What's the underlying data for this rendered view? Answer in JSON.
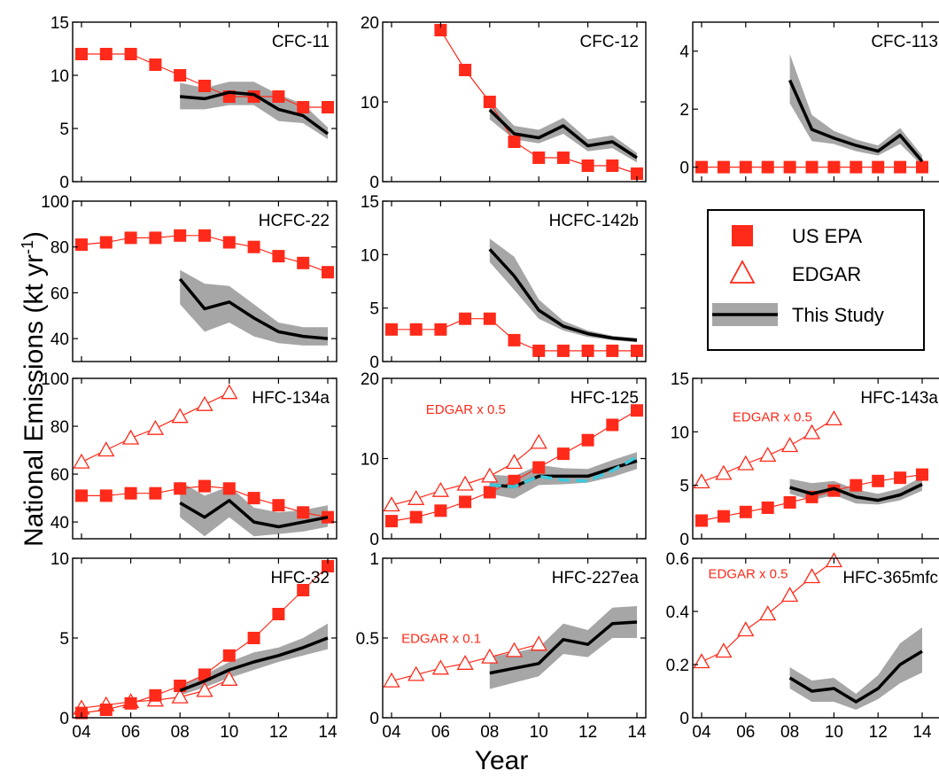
{
  "colors": {
    "epa": "#ff2a1a",
    "edgar": "#ff2a1a",
    "study": "#000000",
    "band": "#a6a6a6",
    "cyan": "#3ec8dc"
  },
  "labels": {
    "ylabel_main": "National Emissions (kt yr",
    "ylabel_sup": "-1",
    "ylabel_close": ")",
    "xlabel": "Year"
  },
  "legend": {
    "epa": "US EPA",
    "edgar": "EDGAR",
    "study": "This Study"
  },
  "chart_data": [
    {
      "type": "line",
      "title": "CFC-11",
      "x_ticks": [
        "04",
        "06",
        "08",
        "10",
        "12",
        "14"
      ],
      "xlim": [
        2004,
        2014
      ],
      "y_ticks": [
        "0",
        "5",
        "10",
        "15"
      ],
      "ylim": [
        0,
        15
      ],
      "series": [
        {
          "name": "US EPA",
          "x": [
            2004,
            2005,
            2006,
            2007,
            2008,
            2009,
            2010,
            2011,
            2012,
            2013,
            2014
          ],
          "y": [
            12,
            12,
            12,
            11,
            10,
            9,
            8,
            8,
            8,
            7,
            7
          ]
        },
        {
          "name": "This Study",
          "x": [
            2008,
            2009,
            2010,
            2011,
            2012,
            2013,
            2014
          ],
          "y": [
            8,
            7.8,
            8.4,
            8.2,
            6.8,
            6.2,
            4.5
          ],
          "lower": [
            6.8,
            6.8,
            7.2,
            7.2,
            5.7,
            5.5,
            4.0
          ],
          "upper": [
            9.3,
            8.8,
            9.4,
            9.4,
            8.2,
            7.3,
            5.1
          ]
        }
      ],
      "annotations": []
    },
    {
      "type": "line",
      "title": "CFC-12",
      "x_ticks": [
        "04",
        "06",
        "08",
        "10",
        "12",
        "14"
      ],
      "xlim": [
        2004,
        2014
      ],
      "y_ticks": [
        "0",
        "10",
        "20"
      ],
      "ylim": [
        0,
        20
      ],
      "series": [
        {
          "name": "US EPA",
          "x": [
            2006,
            2007,
            2008,
            2009,
            2010,
            2011,
            2012,
            2013,
            2014
          ],
          "y": [
            19,
            14,
            10,
            5,
            3,
            3,
            2,
            2,
            1
          ]
        },
        {
          "name": "This Study",
          "x": [
            2008,
            2009,
            2010,
            2011,
            2012,
            2013,
            2014
          ],
          "y": [
            9,
            6,
            5.5,
            7,
            4.5,
            5,
            3
          ],
          "lower": [
            7.8,
            5.3,
            4.8,
            6.0,
            3.8,
            4.2,
            2.4
          ],
          "upper": [
            10.2,
            7.0,
            6.5,
            8.0,
            5.3,
            5.8,
            3.6
          ]
        }
      ],
      "annotations": []
    },
    {
      "type": "line",
      "title": "CFC-113",
      "x_ticks": [
        "04",
        "06",
        "08",
        "10",
        "12",
        "14"
      ],
      "xlim": [
        2004,
        2014
      ],
      "y_ticks": [
        "0",
        "2",
        "4"
      ],
      "ylim": [
        -0.5,
        5
      ],
      "series": [
        {
          "name": "US EPA",
          "x": [
            2004,
            2005,
            2006,
            2007,
            2008,
            2009,
            2010,
            2011,
            2012,
            2013,
            2014
          ],
          "y": [
            0,
            0,
            0,
            0,
            0,
            0,
            0,
            0,
            0,
            0,
            0
          ]
        },
        {
          "name": "This Study",
          "x": [
            2008,
            2009,
            2010,
            2011,
            2012,
            2013,
            2014
          ],
          "y": [
            3,
            1.3,
            1.0,
            0.75,
            0.55,
            1.1,
            0.2
          ],
          "lower": [
            2.2,
            0.9,
            0.8,
            0.55,
            0.4,
            0.8,
            0.05
          ],
          "upper": [
            3.9,
            1.8,
            1.25,
            0.95,
            0.75,
            1.35,
            0.4
          ]
        }
      ],
      "annotations": []
    },
    {
      "type": "line",
      "title": "HCFC-22",
      "x_ticks": [
        "04",
        "06",
        "08",
        "10",
        "12",
        "14"
      ],
      "xlim": [
        2004,
        2014
      ],
      "y_ticks": [
        "40",
        "60",
        "80",
        "100"
      ],
      "ylim": [
        30,
        100
      ],
      "series": [
        {
          "name": "US EPA",
          "x": [
            2004,
            2005,
            2006,
            2007,
            2008,
            2009,
            2010,
            2011,
            2012,
            2013,
            2014
          ],
          "y": [
            81,
            82,
            84,
            84,
            85,
            85,
            82,
            80,
            76,
            73,
            69
          ]
        },
        {
          "name": "This Study",
          "x": [
            2008,
            2009,
            2010,
            2011,
            2012,
            2013,
            2014
          ],
          "y": [
            66,
            53,
            56,
            49,
            43,
            41,
            40
          ],
          "lower": [
            55,
            43,
            47,
            41,
            38,
            37,
            37
          ],
          "upper": [
            70,
            64,
            63,
            55,
            47,
            45,
            45
          ]
        }
      ],
      "annotations": []
    },
    {
      "type": "line",
      "title": "HCFC-142b",
      "x_ticks": [
        "04",
        "06",
        "08",
        "10",
        "12",
        "14"
      ],
      "xlim": [
        2004,
        2014
      ],
      "y_ticks": [
        "0",
        "5",
        "10",
        "15"
      ],
      "ylim": [
        0,
        15
      ],
      "series": [
        {
          "name": "US EPA",
          "x": [
            2004,
            2005,
            2006,
            2007,
            2008,
            2009,
            2010,
            2011,
            2012,
            2013,
            2014
          ],
          "y": [
            3,
            3,
            3,
            4,
            4,
            2,
            1,
            1,
            1,
            1,
            1
          ]
        },
        {
          "name": "This Study",
          "x": [
            2008,
            2009,
            2010,
            2011,
            2012,
            2013,
            2014
          ],
          "y": [
            10.5,
            8,
            4.8,
            3.3,
            2.6,
            2.2,
            2.0
          ],
          "lower": [
            9.3,
            6.7,
            4.0,
            2.9,
            2.3,
            2.0,
            1.8
          ],
          "upper": [
            11.5,
            9.8,
            5.8,
            3.8,
            2.9,
            2.4,
            2.2
          ]
        }
      ],
      "annotations": []
    },
    {
      "type": "line",
      "title": "HFC-134a",
      "x_ticks": [
        "04",
        "06",
        "08",
        "10",
        "12",
        "14"
      ],
      "xlim": [
        2004,
        2014
      ],
      "y_ticks": [
        "40",
        "60",
        "80",
        "100"
      ],
      "ylim": [
        33,
        100
      ],
      "series": [
        {
          "name": "EDGAR",
          "x": [
            2004,
            2005,
            2006,
            2007,
            2008,
            2009,
            2010
          ],
          "y": [
            65,
            70,
            75,
            79,
            84,
            89,
            94
          ]
        },
        {
          "name": "US EPA",
          "x": [
            2004,
            2005,
            2006,
            2007,
            2008,
            2009,
            2010,
            2011,
            2012,
            2013,
            2014
          ],
          "y": [
            51,
            51,
            52,
            52,
            54,
            55,
            54,
            50,
            47,
            44,
            42
          ]
        },
        {
          "name": "This Study",
          "x": [
            2008,
            2009,
            2010,
            2011,
            2012,
            2013,
            2014
          ],
          "y": [
            48,
            42,
            49,
            40,
            38,
            40,
            42
          ],
          "lower": [
            42,
            34,
            42,
            34,
            35,
            36,
            38
          ],
          "upper": [
            57,
            51,
            55,
            46,
            44,
            45,
            47
          ]
        }
      ],
      "annotations": []
    },
    {
      "type": "line",
      "title": "HFC-125",
      "x_ticks": [
        "04",
        "06",
        "08",
        "10",
        "12",
        "14"
      ],
      "xlim": [
        2004,
        2014
      ],
      "y_ticks": [
        "0",
        "10",
        "20"
      ],
      "ylim": [
        0,
        20
      ],
      "series": [
        {
          "name": "EDGAR",
          "x": [
            2004,
            2005,
            2006,
            2007,
            2008,
            2009,
            2010
          ],
          "y": [
            4.2,
            5,
            6,
            6.8,
            7.8,
            9.5,
            12
          ]
        },
        {
          "name": "US EPA",
          "x": [
            2004,
            2005,
            2006,
            2007,
            2008,
            2009,
            2010,
            2011,
            2012,
            2013,
            2014
          ],
          "y": [
            2.2,
            2.7,
            3.5,
            4.6,
            5.8,
            7.2,
            8.9,
            10.6,
            12.3,
            14.2,
            16
          ]
        },
        {
          "name": "This Study",
          "x": [
            2008,
            2009,
            2010,
            2011,
            2012,
            2013,
            2014
          ],
          "y": [
            6.7,
            6.5,
            7.8,
            7.8,
            7.8,
            8.8,
            9.7
          ],
          "lower": [
            5.6,
            5.0,
            6.7,
            6.8,
            7.0,
            7.7,
            8.7
          ],
          "upper": [
            8.0,
            7.8,
            9.2,
            8.8,
            8.7,
            9.8,
            10.8
          ]
        },
        {
          "name": "",
          "x": [
            2008,
            2009,
            2010,
            2011,
            2012,
            2013,
            2014
          ],
          "y": [
            6.7,
            6.5,
            7.8,
            7.3,
            7.2,
            8.5,
            10.2
          ]
        }
      ],
      "annotations": [
        {
          "text": "EDGAR x 0.5",
          "x": 2005.4,
          "y": 15.6
        }
      ]
    },
    {
      "type": "line",
      "title": "HFC-143a",
      "x_ticks": [
        "04",
        "06",
        "08",
        "10",
        "12",
        "14"
      ],
      "xlim": [
        2004,
        2014
      ],
      "y_ticks": [
        "0",
        "5",
        "10",
        "15"
      ],
      "ylim": [
        0,
        15
      ],
      "series": [
        {
          "name": "EDGAR",
          "x": [
            2004,
            2005,
            2006,
            2007,
            2008,
            2009,
            2010
          ],
          "y": [
            5.3,
            6.1,
            7,
            7.8,
            8.7,
            9.9,
            11.2
          ]
        },
        {
          "name": "US EPA",
          "x": [
            2004,
            2005,
            2006,
            2007,
            2008,
            2009,
            2010,
            2011,
            2012,
            2013,
            2014
          ],
          "y": [
            1.7,
            2.1,
            2.5,
            2.9,
            3.4,
            3.9,
            4.5,
            5.0,
            5.4,
            5.7,
            6.0
          ]
        },
        {
          "name": "This Study",
          "x": [
            2008,
            2009,
            2010,
            2011,
            2012,
            2013,
            2014
          ],
          "y": [
            4.8,
            4.2,
            4.7,
            3.9,
            3.6,
            4.1,
            5.1
          ],
          "lower": [
            4.2,
            3.6,
            4.1,
            3.3,
            3.2,
            3.6,
            4.5
          ],
          "upper": [
            5.6,
            5.2,
            5.4,
            4.6,
            4.2,
            4.7,
            5.8
          ]
        }
      ],
      "annotations": [
        {
          "text": "EDGAR x 0.5",
          "x": 2005.4,
          "y": 11.0
        }
      ]
    },
    {
      "type": "line",
      "title": "HFC-32",
      "x_ticks": [
        "04",
        "06",
        "08",
        "10",
        "12",
        "14"
      ],
      "xlim": [
        2004,
        2014
      ],
      "y_ticks": [
        "0",
        "5",
        "10"
      ],
      "ylim": [
        0,
        10
      ],
      "series": [
        {
          "name": "EDGAR",
          "x": [
            2004,
            2005,
            2006,
            2007,
            2008,
            2009,
            2010
          ],
          "y": [
            0.6,
            0.8,
            1.0,
            1.1,
            1.3,
            1.7,
            2.4
          ]
        },
        {
          "name": "US EPA",
          "x": [
            2004,
            2005,
            2006,
            2007,
            2008,
            2009,
            2010,
            2011,
            2012,
            2013,
            2014
          ],
          "y": [
            0.3,
            0.5,
            0.9,
            1.4,
            2.0,
            2.7,
            3.9,
            5.0,
            6.5,
            8.0,
            9.5
          ]
        },
        {
          "name": "This Study",
          "x": [
            2008,
            2009,
            2010,
            2011,
            2012,
            2013,
            2014
          ],
          "y": [
            1.7,
            2.3,
            3.0,
            3.5,
            3.9,
            4.4,
            5.0
          ],
          "lower": [
            1.4,
            1.9,
            2.5,
            3.0,
            3.5,
            3.9,
            4.3
          ],
          "upper": [
            2.0,
            2.7,
            3.5,
            4.1,
            4.4,
            5.0,
            5.9
          ]
        }
      ],
      "annotations": []
    },
    {
      "type": "line",
      "title": "HFC-227ea",
      "x_ticks": [
        "04",
        "06",
        "08",
        "10",
        "12",
        "14"
      ],
      "xlim": [
        2004,
        2014
      ],
      "y_ticks": [
        "0",
        "0.5",
        "1"
      ],
      "ylim": [
        0,
        1
      ],
      "series": [
        {
          "name": "EDGAR",
          "x": [
            2004,
            2005,
            2006,
            2007,
            2008,
            2009,
            2010
          ],
          "y": [
            0.23,
            0.27,
            0.31,
            0.34,
            0.38,
            0.42,
            0.46
          ]
        },
        {
          "name": "This Study",
          "x": [
            2008,
            2009,
            2010,
            2011,
            2012,
            2013,
            2014
          ],
          "y": [
            0.28,
            0.31,
            0.34,
            0.49,
            0.46,
            0.59,
            0.6
          ],
          "lower": [
            0.18,
            0.22,
            0.26,
            0.4,
            0.38,
            0.5,
            0.5
          ],
          "upper": [
            0.38,
            0.41,
            0.44,
            0.59,
            0.55,
            0.69,
            0.7
          ]
        }
      ],
      "annotations": [
        {
          "text": "EDGAR x 0.1",
          "x": 2004.4,
          "y": 0.47
        }
      ]
    },
    {
      "type": "line",
      "title": "HFC-365mfc",
      "x_ticks": [
        "04",
        "06",
        "08",
        "10",
        "12",
        "14"
      ],
      "xlim": [
        2004,
        2014
      ],
      "y_ticks": [
        "0",
        "0.2",
        "0.4",
        "0.6"
      ],
      "ylim": [
        0,
        0.6
      ],
      "series": [
        {
          "name": "EDGAR",
          "x": [
            2004,
            2005,
            2006,
            2007,
            2008,
            2009,
            2010
          ],
          "y": [
            0.21,
            0.25,
            0.33,
            0.39,
            0.46,
            0.53,
            0.59
          ]
        },
        {
          "name": "This Study",
          "x": [
            2008,
            2009,
            2010,
            2011,
            2012,
            2013,
            2014
          ],
          "y": [
            0.15,
            0.1,
            0.11,
            0.06,
            0.11,
            0.2,
            0.25
          ],
          "lower": [
            0.11,
            0.06,
            0.06,
            0.03,
            0.07,
            0.13,
            0.17
          ],
          "upper": [
            0.19,
            0.14,
            0.15,
            0.09,
            0.16,
            0.28,
            0.34
          ]
        }
      ],
      "annotations": [
        {
          "text": "EDGAR x 0.5",
          "x": 2004.3,
          "y": 0.525
        }
      ]
    }
  ]
}
